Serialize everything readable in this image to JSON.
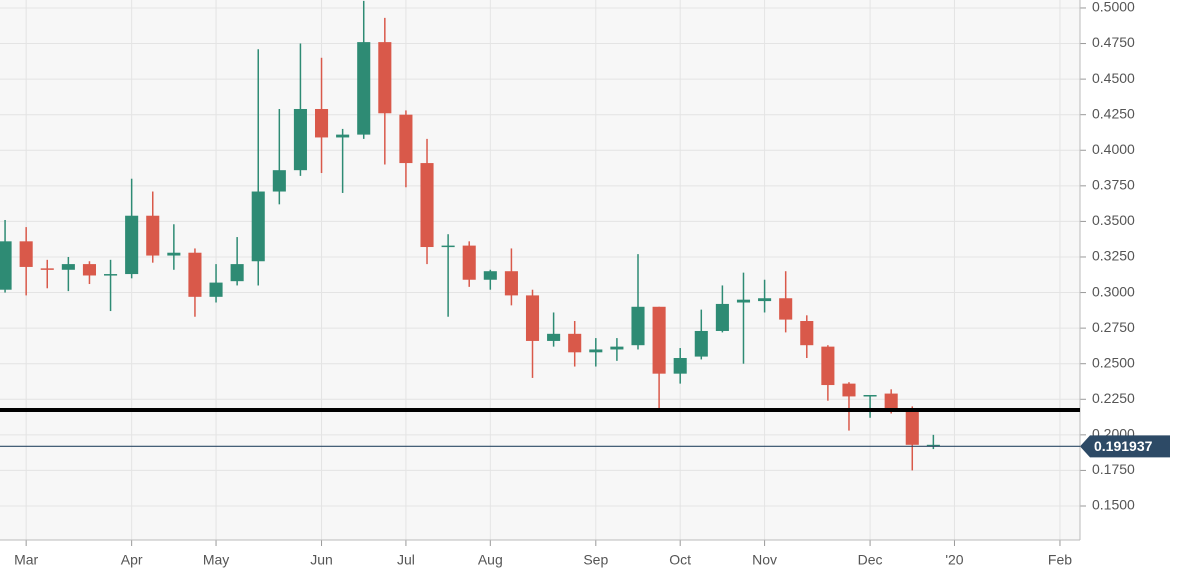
{
  "chart_data": {
    "type": "candlestick",
    "up_color": "#2e8b74",
    "down_color": "#d9594a",
    "open": [
      0.302,
      0.336,
      0.317,
      0.316,
      0.32,
      0.312,
      0.313,
      0.354,
      0.326,
      0.328,
      0.297,
      0.308,
      0.322,
      0.371,
      0.386,
      0.429,
      0.409,
      0.411,
      0.476,
      0.425,
      0.391,
      0.332,
      0.333,
      0.309,
      0.315,
      0.298,
      0.266,
      0.271,
      0.258,
      0.26,
      0.263,
      0.29,
      0.243,
      0.255,
      0.273,
      0.293,
      0.294,
      0.296,
      0.28,
      0.262,
      0.236,
      0.227,
      0.229,
      0.217,
      0.192
    ],
    "high": [
      0.351,
      0.346,
      0.323,
      0.325,
      0.322,
      0.323,
      0.38,
      0.371,
      0.348,
      0.331,
      0.32,
      0.339,
      0.471,
      0.429,
      0.475,
      0.465,
      0.415,
      0.505,
      0.493,
      0.428,
      0.408,
      0.341,
      0.336,
      0.316,
      0.331,
      0.302,
      0.286,
      0.28,
      0.268,
      0.268,
      0.327,
      0.29,
      0.261,
      0.288,
      0.305,
      0.314,
      0.309,
      0.315,
      0.284,
      0.263,
      0.237,
      0.228,
      0.232,
      0.22,
      0.2
    ],
    "low": [
      0.3,
      0.298,
      0.303,
      0.301,
      0.306,
      0.287,
      0.31,
      0.321,
      0.316,
      0.283,
      0.293,
      0.305,
      0.305,
      0.362,
      0.382,
      0.384,
      0.37,
      0.408,
      0.39,
      0.374,
      0.32,
      0.283,
      0.304,
      0.302,
      0.291,
      0.24,
      0.262,
      0.248,
      0.248,
      0.252,
      0.26,
      0.218,
      0.236,
      0.253,
      0.272,
      0.25,
      0.286,
      0.272,
      0.254,
      0.224,
      0.203,
      0.212,
      0.215,
      0.175,
      0.19
    ],
    "close": [
      0.336,
      0.318,
      0.316,
      0.32,
      0.312,
      0.313,
      0.354,
      0.326,
      0.328,
      0.297,
      0.307,
      0.32,
      0.371,
      0.386,
      0.429,
      0.409,
      0.411,
      0.476,
      0.426,
      0.391,
      0.332,
      0.333,
      0.309,
      0.315,
      0.298,
      0.266,
      0.271,
      0.258,
      0.26,
      0.262,
      0.29,
      0.243,
      0.254,
      0.273,
      0.292,
      0.295,
      0.296,
      0.281,
      0.263,
      0.235,
      0.227,
      0.228,
      0.217,
      0.193,
      0.193
    ],
    "xlim": [
      -0.24,
      50.95
    ],
    "xticks": [
      {
        "value": 1,
        "label": "Mar"
      },
      {
        "value": 6,
        "label": "Apr"
      },
      {
        "value": 10,
        "label": "May"
      },
      {
        "value": 15,
        "label": "Jun"
      },
      {
        "value": 19,
        "label": "Jul"
      },
      {
        "value": 23,
        "label": "Aug"
      },
      {
        "value": 28,
        "label": "Sep"
      },
      {
        "value": 32,
        "label": "Oct"
      },
      {
        "value": 36,
        "label": "Nov"
      },
      {
        "value": 41,
        "label": "Dec"
      },
      {
        "value": 45,
        "label": "'20"
      },
      {
        "value": 50,
        "label": "Feb"
      }
    ],
    "ylim": [
      0.1261,
      0.5056
    ],
    "yticks": [
      {
        "value": 0.5,
        "label": "0.5000"
      },
      {
        "value": 0.475,
        "label": "0.4750"
      },
      {
        "value": 0.45,
        "label": "0.4500"
      },
      {
        "value": 0.425,
        "label": "0.4250"
      },
      {
        "value": 0.4,
        "label": "0.4000"
      },
      {
        "value": 0.375,
        "label": "0.3750"
      },
      {
        "value": 0.35,
        "label": "0.3500"
      },
      {
        "value": 0.325,
        "label": "0.3250"
      },
      {
        "value": 0.3,
        "label": "0.3000"
      },
      {
        "value": 0.275,
        "label": "0.2750"
      },
      {
        "value": 0.25,
        "label": "0.2500"
      },
      {
        "value": 0.225,
        "label": "0.2250"
      },
      {
        "value": 0.2,
        "label": "0.2000"
      },
      {
        "value": 0.175,
        "label": "0.1750"
      },
      {
        "value": 0.15,
        "label": "0.1500"
      }
    ],
    "grid": true,
    "support_line": {
      "value": 0.2175,
      "color": "#000000"
    },
    "last_price": {
      "value": 0.191937,
      "color": "#2d4a66"
    }
  }
}
